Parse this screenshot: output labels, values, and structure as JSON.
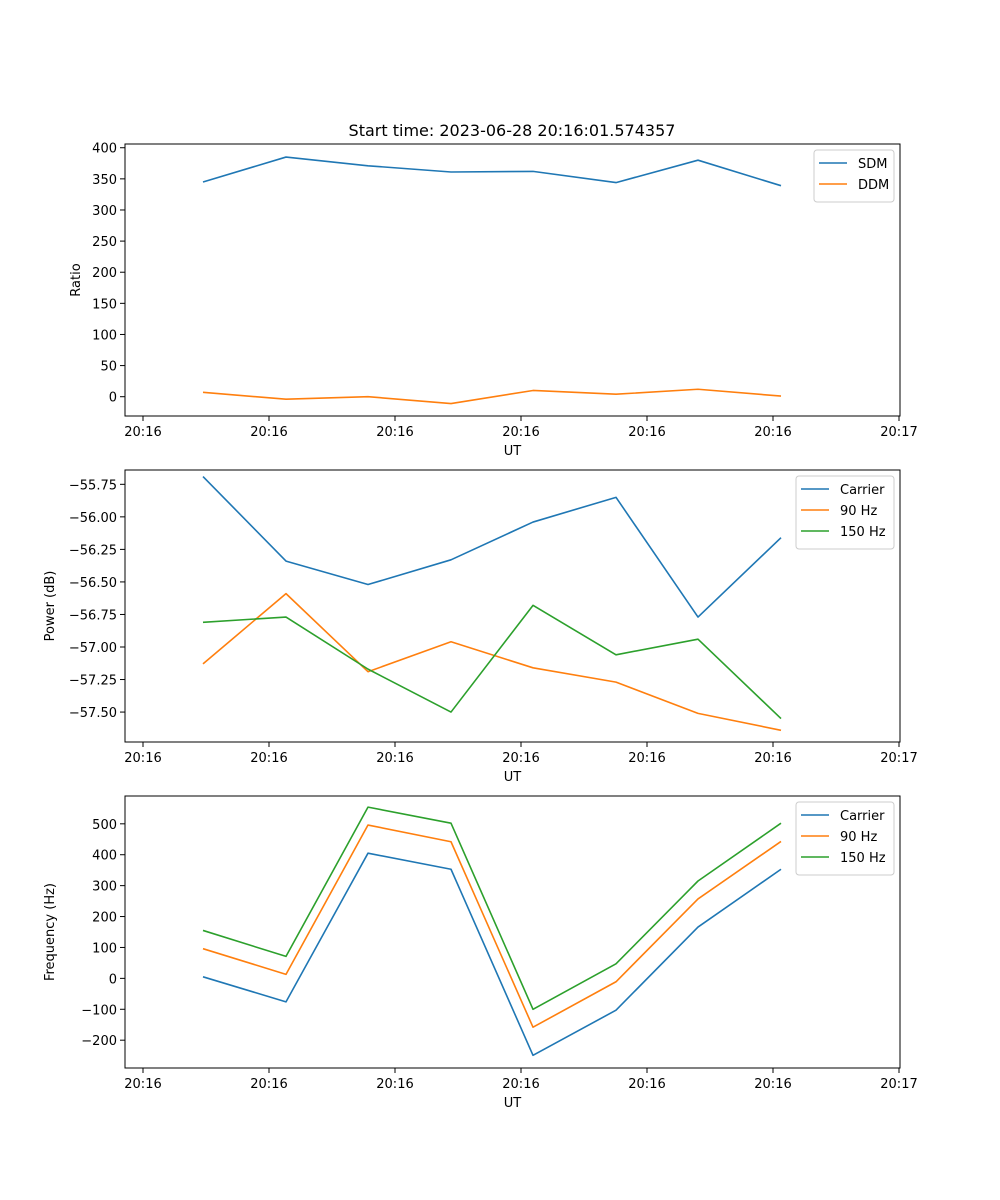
{
  "title": "Start time: 2023-06-28 20:16:01.574357",
  "charts": [
    {
      "type": "line",
      "xlabel": "UT",
      "ylabel": "Ratio",
      "ylim": [
        -31,
        406
      ],
      "yticks": [
        0,
        50,
        100,
        150,
        200,
        250,
        300,
        350,
        400
      ],
      "xticks": [
        "20:16",
        "20:16",
        "20:16",
        "20:16",
        "20:16",
        "20:16",
        "20:16"
      ],
      "final_xtick": "20:17",
      "legend_position": "top-right",
      "grid": false,
      "series": [
        {
          "name": "SDM",
          "color": "#1f77b4",
          "values": [
            345,
            385,
            371,
            361,
            362,
            344,
            380,
            339
          ]
        },
        {
          "name": "DDM",
          "color": "#ff7f0e",
          "values": [
            7,
            -4,
            0,
            -11,
            10,
            4,
            12,
            1
          ]
        }
      ]
    },
    {
      "type": "line",
      "xlabel": "UT",
      "ylabel": "Power (dB)",
      "ylim": [
        -57.73,
        -55.64
      ],
      "yticks": [
        -57.5,
        -57.25,
        -57.0,
        -56.75,
        -56.5,
        -56.25,
        -56.0,
        -55.75
      ],
      "ytick_labels": [
        "−57.50",
        "−57.25",
        "−57.00",
        "−56.75",
        "−56.50",
        "−56.25",
        "−56.00",
        "−55.75"
      ],
      "xticks": [
        "20:16",
        "20:16",
        "20:16",
        "20:16",
        "20:16",
        "20:16",
        "20:16"
      ],
      "final_xtick": "20:17",
      "legend_position": "top-right",
      "grid": false,
      "series": [
        {
          "name": "Carrier",
          "color": "#1f77b4",
          "values": [
            -55.69,
            -56.34,
            -56.52,
            -56.33,
            -56.04,
            -55.85,
            -56.77,
            -56.16
          ]
        },
        {
          "name": "90 Hz",
          "color": "#ff7f0e",
          "values": [
            -57.13,
            -56.59,
            -57.19,
            -56.96,
            -57.16,
            -57.27,
            -57.51,
            -57.64
          ]
        },
        {
          "name": "150 Hz",
          "color": "#2ca02c",
          "values": [
            -56.81,
            -56.77,
            -57.17,
            -57.5,
            -56.68,
            -57.06,
            -56.94,
            -57.55
          ]
        }
      ]
    },
    {
      "type": "line",
      "xlabel": "UT",
      "ylabel": "Frequency (Hz)",
      "ylim": [
        -290,
        590
      ],
      "yticks": [
        -200,
        -100,
        0,
        100,
        200,
        300,
        400,
        500
      ],
      "ytick_labels": [
        "−200",
        "−100",
        "0",
        "100",
        "200",
        "300",
        "400",
        "500"
      ],
      "xticks": [
        "20:16",
        "20:16",
        "20:16",
        "20:16",
        "20:16",
        "20:16",
        "20:16"
      ],
      "final_xtick": "20:17",
      "legend_position": "top-right",
      "grid": false,
      "series": [
        {
          "name": "Carrier",
          "color": "#1f77b4",
          "values": [
            5,
            -76,
            405,
            353,
            -249,
            -103,
            166,
            353
          ]
        },
        {
          "name": "90 Hz",
          "color": "#ff7f0e",
          "values": [
            96,
            13,
            496,
            442,
            -158,
            -11,
            257,
            443
          ]
        },
        {
          "name": "150 Hz",
          "color": "#2ca02c",
          "values": [
            155,
            71,
            554,
            502,
            -100,
            47,
            315,
            502
          ]
        }
      ]
    }
  ]
}
